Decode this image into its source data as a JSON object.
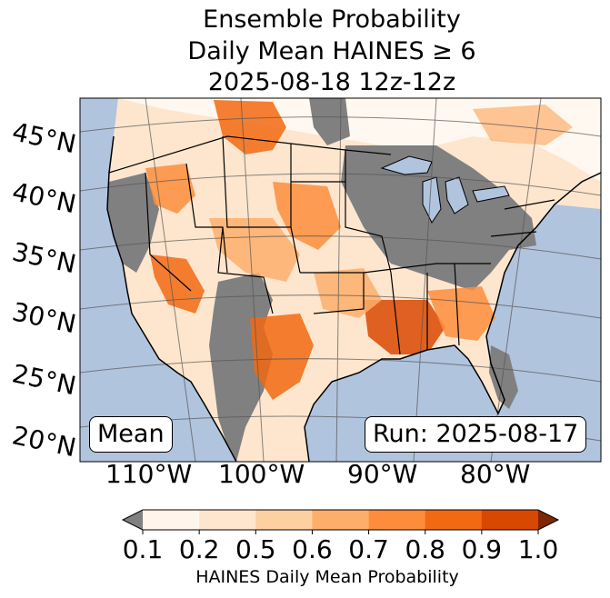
{
  "title": {
    "line1": "Ensemble Probability",
    "line2": "Daily Mean HAINES ≥ 6",
    "line3": "2025-08-18 12z-12z"
  },
  "map": {
    "lat_labels": [
      "45°N",
      "40°N",
      "35°N",
      "30°N",
      "25°N",
      "20°N"
    ],
    "lon_labels": [
      "110°W",
      "100°W",
      "90°W",
      "80°W"
    ],
    "mean_label": "Mean",
    "run_label": "Run: 2025-08-17",
    "colors": {
      "ocean": "#b0c4de",
      "land_masked": "#808080",
      "land_low": "#ffffff"
    }
  },
  "colorbar": {
    "label": "HAINES Daily Mean Probability",
    "ticks": [
      "0.1",
      "0.2",
      "0.5",
      "0.6",
      "0.7",
      "0.8",
      "0.9",
      "1.0"
    ],
    "colors": [
      "#fff5eb",
      "#fee6ce",
      "#fdd0a2",
      "#fdae6b",
      "#fd8d3c",
      "#f16913",
      "#d94801",
      "#a63603"
    ],
    "under_color": "#808080",
    "over_color": "#7f2704"
  }
}
